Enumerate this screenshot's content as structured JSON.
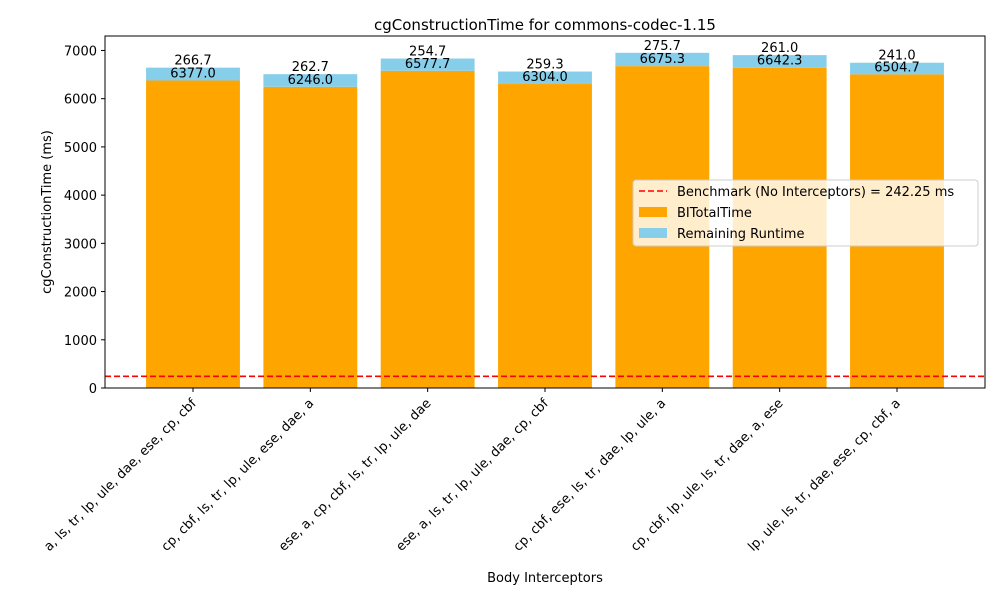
{
  "chart_data": {
    "type": "bar",
    "stacked": true,
    "title": "cgConstructionTime for commons-codec-1.15",
    "xlabel": "Body Interceptors",
    "ylabel": "cgConstructionTime (ms)",
    "ylim": [
      0,
      7300
    ],
    "yticks": [
      0,
      1000,
      2000,
      3000,
      4000,
      5000,
      6000,
      7000
    ],
    "grid": false,
    "legend_position": "center-right",
    "categories": [
      "a, ls, tr, lp, ule, dae, ese, cp, cbf",
      "cp, cbf, ls, tr, lp, ule, ese, dae, a",
      "ese, a, cp, cbf, ls, tr, lp, ule, dae",
      "ese, a, ls, tr, lp, ule, dae, cp, cbf",
      "cp, cbf, ese, ls, tr, dae, lp, ule, a",
      "cp, cbf, lp, ule, ls, tr, dae, a, ese",
      "lp, ule, ls, tr, dae, ese, cp, cbf, a"
    ],
    "series": [
      {
        "name": "BITotalTime",
        "color": "#ffa500",
        "values": [
          6377.0,
          6246.0,
          6577.7,
          6304.0,
          6675.3,
          6642.3,
          6504.7
        ],
        "labels": [
          "6377.0",
          "6246.0",
          "6577.7",
          "6304.0",
          "6675.3",
          "6642.3",
          "6504.7"
        ]
      },
      {
        "name": "Remaining Runtime",
        "color": "#87ceeb",
        "values": [
          266.7,
          262.7,
          254.7,
          259.3,
          275.7,
          261.0,
          241.0
        ],
        "labels": [
          "266.7",
          "262.7",
          "254.7",
          "259.3",
          "275.7",
          "261.0",
          "241.0"
        ]
      }
    ],
    "benchmark": {
      "name": "Benchmark (No Interceptors) = 242.25 ms",
      "value": 242.25,
      "color": "#ff0000",
      "style": "dashed"
    }
  }
}
